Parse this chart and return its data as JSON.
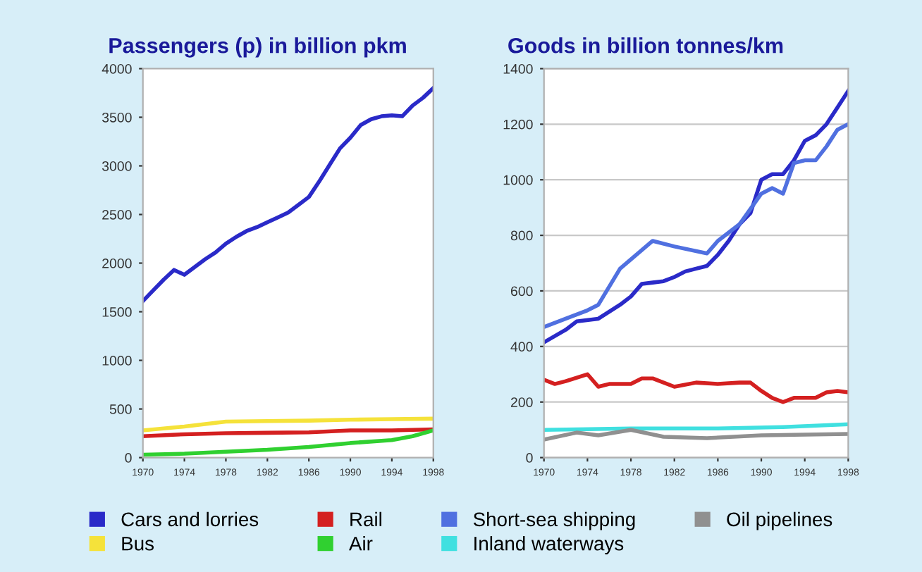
{
  "chart_data": [
    {
      "type": "line",
      "title": "Passengers (p) in billion pkm",
      "xlim": [
        1970,
        1998
      ],
      "xticks": [
        1970,
        1974,
        1978,
        1982,
        1986,
        1990,
        1994,
        1998
      ],
      "ylim": [
        0,
        4000
      ],
      "yticks": [
        0,
        500,
        1000,
        1500,
        2000,
        2500,
        3000,
        3500,
        4000
      ],
      "grid": false,
      "legend": "bottom",
      "series": [
        {
          "name": "Cars and lorries",
          "color": "#2a2ac8",
          "x": [
            1970,
            1971,
            1972,
            1973,
            1974,
            1975,
            1976,
            1977,
            1978,
            1979,
            1980,
            1981,
            1982,
            1983,
            1984,
            1985,
            1986,
            1987,
            1988,
            1989,
            1990,
            1991,
            1992,
            1993,
            1994,
            1995,
            1996,
            1997,
            1998
          ],
          "values": [
            1610,
            1720,
            1830,
            1930,
            1880,
            1960,
            2040,
            2110,
            2200,
            2270,
            2330,
            2370,
            2420,
            2470,
            2520,
            2600,
            2680,
            2840,
            3010,
            3180,
            3290,
            3420,
            3480,
            3510,
            3520,
            3510,
            3620,
            3700,
            3800
          ]
        },
        {
          "name": "Bus",
          "color": "#f5e23a",
          "x": [
            1970,
            1974,
            1978,
            1982,
            1986,
            1990,
            1994,
            1998
          ],
          "values": [
            280,
            320,
            370,
            375,
            380,
            390,
            395,
            400
          ]
        },
        {
          "name": "Rail",
          "color": "#d42020",
          "x": [
            1970,
            1974,
            1978,
            1982,
            1986,
            1990,
            1994,
            1998
          ],
          "values": [
            220,
            240,
            250,
            255,
            260,
            280,
            280,
            290
          ]
        },
        {
          "name": "Air",
          "color": "#30d030",
          "x": [
            1970,
            1974,
            1978,
            1982,
            1986,
            1990,
            1994,
            1996,
            1998
          ],
          "values": [
            30,
            40,
            60,
            80,
            110,
            150,
            180,
            220,
            280
          ]
        }
      ]
    },
    {
      "type": "line",
      "title": "Goods in billion tonnes/km",
      "xlim": [
        1970,
        1998
      ],
      "xticks": [
        1970,
        1974,
        1978,
        1982,
        1986,
        1990,
        1994,
        1998
      ],
      "ylim": [
        0,
        1400
      ],
      "yticks": [
        0,
        200,
        400,
        600,
        800,
        1000,
        1200,
        1400
      ],
      "grid": "y",
      "legend": "bottom",
      "series": [
        {
          "name": "Cars and lorries",
          "color": "#2a2ac8",
          "x": [
            1970,
            1972,
            1973,
            1975,
            1977,
            1978,
            1979,
            1980,
            1981,
            1982,
            1983,
            1984,
            1985,
            1986,
            1987,
            1988,
            1989,
            1990,
            1991,
            1992,
            1993,
            1994,
            1995,
            1996,
            1997,
            1998
          ],
          "values": [
            415,
            460,
            490,
            500,
            550,
            580,
            625,
            630,
            635,
            650,
            670,
            680,
            690,
            730,
            780,
            840,
            880,
            1000,
            1020,
            1020,
            1070,
            1140,
            1160,
            1200,
            1260,
            1320
          ]
        },
        {
          "name": "Short-sea shipping",
          "color": "#5070e0",
          "x": [
            1970,
            1972,
            1974,
            1975,
            1977,
            1980,
            1982,
            1985,
            1986,
            1988,
            1990,
            1991,
            1992,
            1993,
            1994,
            1995,
            1996,
            1997,
            1998
          ],
          "values": [
            470,
            500,
            530,
            550,
            680,
            780,
            760,
            735,
            780,
            840,
            950,
            970,
            950,
            1060,
            1070,
            1070,
            1120,
            1180,
            1200
          ]
        },
        {
          "name": "Rail",
          "color": "#d42020",
          "x": [
            1970,
            1971,
            1972,
            1974,
            1975,
            1976,
            1978,
            1979,
            1980,
            1982,
            1984,
            1986,
            1988,
            1989,
            1990,
            1991,
            1992,
            1993,
            1994,
            1995,
            1996,
            1997,
            1998
          ],
          "values": [
            280,
            265,
            275,
            300,
            255,
            265,
            265,
            285,
            285,
            255,
            270,
            265,
            270,
            270,
            240,
            215,
            200,
            215,
            215,
            215,
            235,
            240,
            235
          ]
        },
        {
          "name": "Inland waterways",
          "color": "#40e0e0",
          "x": [
            1970,
            1978,
            1986,
            1992,
            1998
          ],
          "values": [
            100,
            105,
            105,
            110,
            120
          ]
        },
        {
          "name": "Oil pipelines",
          "color": "#909090",
          "x": [
            1970,
            1973,
            1975,
            1978,
            1981,
            1985,
            1990,
            1998
          ],
          "values": [
            65,
            90,
            80,
            100,
            75,
            70,
            80,
            85
          ]
        }
      ]
    }
  ]
}
